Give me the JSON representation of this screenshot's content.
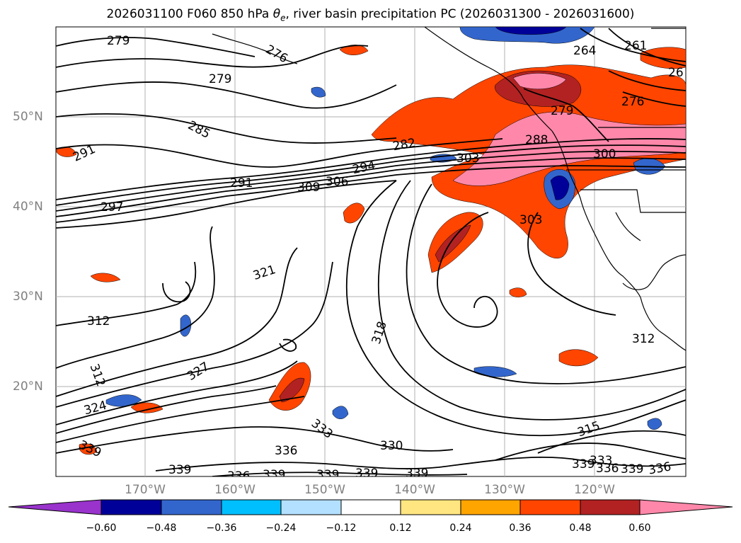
{
  "title": {
    "prefix": "2026031100 F060 850 hPa ",
    "theta": "θ",
    "sub": "e",
    "suffix": ", river basin precipitation PC (2026031300 - 2026031600)"
  },
  "lat_labels": [
    "50°N",
    "40°N",
    "30°N",
    "20°N"
  ],
  "lon_labels": [
    "170°W",
    "160°W",
    "150°W",
    "140°W",
    "130°W",
    "120°W"
  ],
  "contour_labels": [
    "279",
    "279",
    "276",
    "264",
    "261",
    "26",
    "285",
    "291",
    "282",
    "303",
    "288",
    "276",
    "279",
    "300",
    "291",
    "294",
    "309",
    "306",
    "297",
    "303",
    "321",
    "312",
    "318",
    "312",
    "312",
    "327",
    "324",
    "333",
    "336",
    "330",
    "315",
    "339",
    "339",
    "336",
    "339",
    "339",
    "339",
    "339",
    "339",
    "339",
    "333",
    "336",
    "336"
  ],
  "colorbar": {
    "ticks": [
      "−0.60",
      "−0.48",
      "−0.36",
      "−0.24",
      "−0.12",
      "0.12",
      "0.24",
      "0.36",
      "0.48",
      "0.60"
    ],
    "colors": [
      "#9933cc",
      "#000099",
      "#3366cc",
      "#00bfff",
      "#b3e0ff",
      "#ffffff",
      "#ffe680",
      "#ffa500",
      "#ff4500",
      "#b22222",
      "#ff88aa"
    ]
  },
  "map": {
    "ocean_color": "#ffffff",
    "grid_color": "#b0b0b0",
    "contour_color": "#000000"
  }
}
